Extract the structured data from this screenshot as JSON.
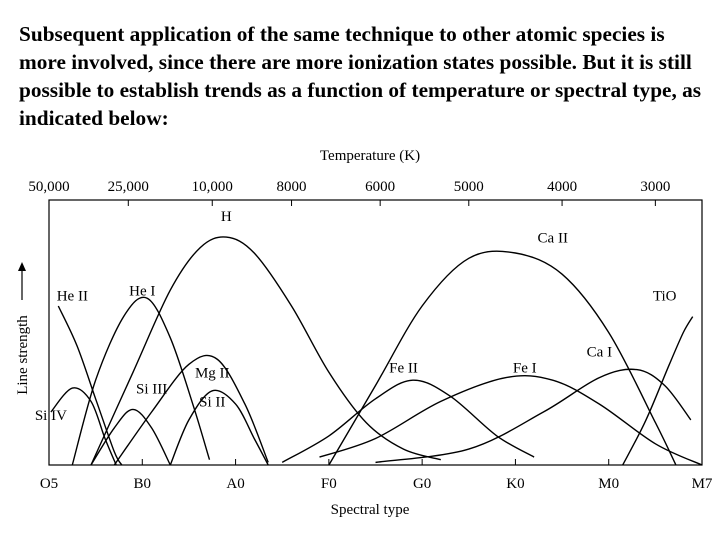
{
  "intro_text": "Subsequent application of the same technique to other atomic species is more involved, since there are more ionization states possible. But it is still possible to establish trends as a function of temperature or spectral type, as indicated below:",
  "chart_data": {
    "type": "line",
    "xlabel": "Spectral type",
    "ylabel": "Line strength",
    "top_axis_label": "Temperature (K)",
    "spectral_types": [
      "O5",
      "B0",
      "A0",
      "F0",
      "G0",
      "K0",
      "M0",
      "M7"
    ],
    "temperature_ticks": [
      {
        "label": "50,000",
        "spectral_pos": 0.0
      },
      {
        "label": "25,000",
        "spectral_pos": 0.85
      },
      {
        "label": "10,000",
        "spectral_pos": 1.75
      },
      {
        "label": "8000",
        "spectral_pos": 2.6
      },
      {
        "label": "6000",
        "spectral_pos": 3.55
      },
      {
        "label": "5000",
        "spectral_pos": 4.5
      },
      {
        "label": "4000",
        "spectral_pos": 5.5
      },
      {
        "label": "3000",
        "spectral_pos": 6.5
      }
    ],
    "x_range": [
      0,
      7
    ],
    "y_range": [
      0,
      1
    ],
    "series": [
      {
        "name": "H",
        "points": [
          [
            0.45,
            0.0
          ],
          [
            0.9,
            0.35
          ],
          [
            1.3,
            0.66
          ],
          [
            1.62,
            0.82
          ],
          [
            1.9,
            0.86
          ],
          [
            2.2,
            0.8
          ],
          [
            2.6,
            0.6
          ],
          [
            3.0,
            0.35
          ],
          [
            3.4,
            0.16
          ],
          [
            3.8,
            0.06
          ],
          [
            4.2,
            0.02
          ]
        ]
      },
      {
        "name": "He II",
        "points": [
          [
            0.1,
            0.6
          ],
          [
            0.3,
            0.45
          ],
          [
            0.5,
            0.25
          ],
          [
            0.7,
            0.05
          ],
          [
            0.78,
            0.0
          ]
        ]
      },
      {
        "name": "He I",
        "points": [
          [
            0.25,
            0.0
          ],
          [
            0.5,
            0.32
          ],
          [
            0.8,
            0.56
          ],
          [
            1.05,
            0.63
          ],
          [
            1.3,
            0.48
          ],
          [
            1.55,
            0.22
          ],
          [
            1.72,
            0.02
          ]
        ]
      },
      {
        "name": "Si IV",
        "points": [
          [
            0.02,
            0.2
          ],
          [
            0.25,
            0.29
          ],
          [
            0.45,
            0.24
          ],
          [
            0.6,
            0.1
          ],
          [
            0.72,
            0.0
          ]
        ]
      },
      {
        "name": "Si III",
        "points": [
          [
            0.45,
            0.0
          ],
          [
            0.7,
            0.14
          ],
          [
            0.9,
            0.21
          ],
          [
            1.1,
            0.14
          ],
          [
            1.3,
            0.0
          ]
        ]
      },
      {
        "name": "Si II",
        "points": [
          [
            1.3,
            0.0
          ],
          [
            1.5,
            0.17
          ],
          [
            1.75,
            0.28
          ],
          [
            2.0,
            0.23
          ],
          [
            2.2,
            0.1
          ],
          [
            2.35,
            0.0
          ]
        ]
      },
      {
        "name": "Mg II",
        "points": [
          [
            0.7,
            0.0
          ],
          [
            1.1,
            0.2
          ],
          [
            1.5,
            0.38
          ],
          [
            1.8,
            0.4
          ],
          [
            2.1,
            0.23
          ],
          [
            2.35,
            0.01
          ]
        ]
      },
      {
        "name": "Ca II",
        "points": [
          [
            3.0,
            0.0
          ],
          [
            3.5,
            0.3
          ],
          [
            4.0,
            0.6
          ],
          [
            4.5,
            0.78
          ],
          [
            5.0,
            0.8
          ],
          [
            5.5,
            0.72
          ],
          [
            6.0,
            0.5
          ],
          [
            6.5,
            0.16
          ],
          [
            6.72,
            0.0
          ]
        ]
      },
      {
        "name": "Fe II",
        "points": [
          [
            2.5,
            0.01
          ],
          [
            3.0,
            0.11
          ],
          [
            3.5,
            0.25
          ],
          [
            3.9,
            0.32
          ],
          [
            4.3,
            0.26
          ],
          [
            4.8,
            0.11
          ],
          [
            5.2,
            0.03
          ]
        ]
      },
      {
        "name": "Fe I",
        "points": [
          [
            2.9,
            0.03
          ],
          [
            3.5,
            0.1
          ],
          [
            4.2,
            0.24
          ],
          [
            4.9,
            0.33
          ],
          [
            5.4,
            0.32
          ],
          [
            5.9,
            0.23
          ],
          [
            6.5,
            0.08
          ],
          [
            7.0,
            0.0
          ]
        ]
      },
      {
        "name": "Ca I",
        "points": [
          [
            3.5,
            0.01
          ],
          [
            4.5,
            0.06
          ],
          [
            5.3,
            0.2
          ],
          [
            5.9,
            0.33
          ],
          [
            6.3,
            0.36
          ],
          [
            6.6,
            0.3
          ],
          [
            6.88,
            0.17
          ]
        ]
      },
      {
        "name": "TiO",
        "points": [
          [
            6.15,
            0.0
          ],
          [
            6.4,
            0.17
          ],
          [
            6.65,
            0.38
          ],
          [
            6.8,
            0.5
          ],
          [
            6.9,
            0.56
          ]
        ]
      }
    ],
    "curve_labels": [
      {
        "series": "H",
        "x": 1.9,
        "y": 0.92
      },
      {
        "series": "He II",
        "x": 0.25,
        "y": 0.62
      },
      {
        "series": "He I",
        "x": 1.0,
        "y": 0.64
      },
      {
        "series": "Si IV",
        "x": 0.02,
        "y": 0.17
      },
      {
        "series": "Si III",
        "x": 1.1,
        "y": 0.27
      },
      {
        "series": "Si II",
        "x": 1.75,
        "y": 0.22
      },
      {
        "series": "Mg II",
        "x": 1.75,
        "y": 0.33
      },
      {
        "series": "Ca II",
        "x": 5.4,
        "y": 0.84
      },
      {
        "series": "Fe II",
        "x": 3.8,
        "y": 0.35
      },
      {
        "series": "Fe I",
        "x": 5.1,
        "y": 0.35
      },
      {
        "series": "Ca I",
        "x": 5.9,
        "y": 0.41
      },
      {
        "series": "TiO",
        "x": 6.6,
        "y": 0.62
      }
    ],
    "grid": false,
    "legend": "none"
  }
}
